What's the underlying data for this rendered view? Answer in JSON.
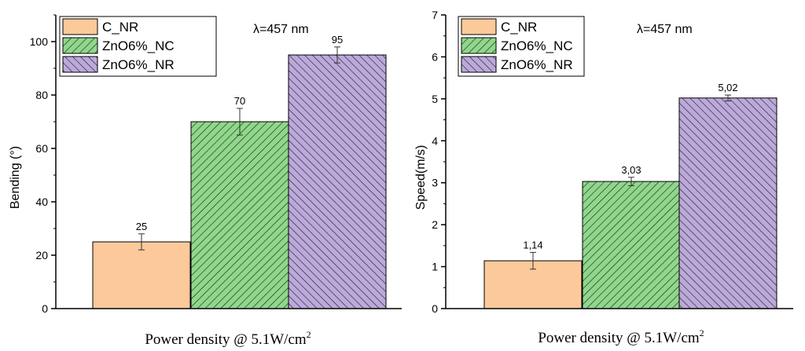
{
  "colors": {
    "c_nr": "#fcc99a",
    "zno_nc": "#8fd78b",
    "zno_nr": "#bca9db",
    "axis": "#000000"
  },
  "chart_data": [
    {
      "type": "bar",
      "title": "",
      "annotation": "λ=457 nm",
      "xlabel": "Power density @ 5.1W/cm",
      "xlabel_superscript": "2",
      "ylabel": "Bending (°)",
      "ylim": [
        0,
        110
      ],
      "yticks": [
        0,
        20,
        40,
        60,
        80,
        100
      ],
      "ytick_labels": [
        "0",
        "20",
        "40",
        "60",
        "80",
        "100"
      ],
      "grid": false,
      "legend_position": "top-left",
      "series": [
        {
          "name": "C_NR",
          "value": 25,
          "error": 3,
          "label": "25",
          "color": "#fcc99a",
          "pattern": "none"
        },
        {
          "name": "ZnO6%_NC",
          "value": 70,
          "error": 5,
          "label": "70",
          "color": "#8fd78b",
          "pattern": "hatch-forward"
        },
        {
          "name": "ZnO6%_NR",
          "value": 95,
          "error": 3,
          "label": "95",
          "color": "#bca9db",
          "pattern": "hatch-back"
        }
      ]
    },
    {
      "type": "bar",
      "title": "",
      "annotation": "λ=457 nm",
      "xlabel": "Power density @ 5.1W/cm",
      "xlabel_superscript": "2",
      "ylabel": "Speed(m/s)",
      "ylim": [
        0,
        7
      ],
      "yticks": [
        0,
        1,
        2,
        3,
        4,
        5,
        6,
        7
      ],
      "ytick_labels": [
        "0",
        "1",
        "2",
        "3",
        "4",
        "5",
        "6",
        "7"
      ],
      "grid": false,
      "legend_position": "top-left",
      "series": [
        {
          "name": "C_NR",
          "value": 1.14,
          "error": 0.2,
          "label": "1,14",
          "color": "#fcc99a",
          "pattern": "none"
        },
        {
          "name": "ZnO6%_NC",
          "value": 3.03,
          "error": 0.1,
          "label": "3,03",
          "color": "#8fd78b",
          "pattern": "hatch-forward"
        },
        {
          "name": "ZnO6%_NR",
          "value": 5.02,
          "error": 0.07,
          "label": "5,02",
          "color": "#bca9db",
          "pattern": "hatch-back"
        }
      ]
    }
  ]
}
